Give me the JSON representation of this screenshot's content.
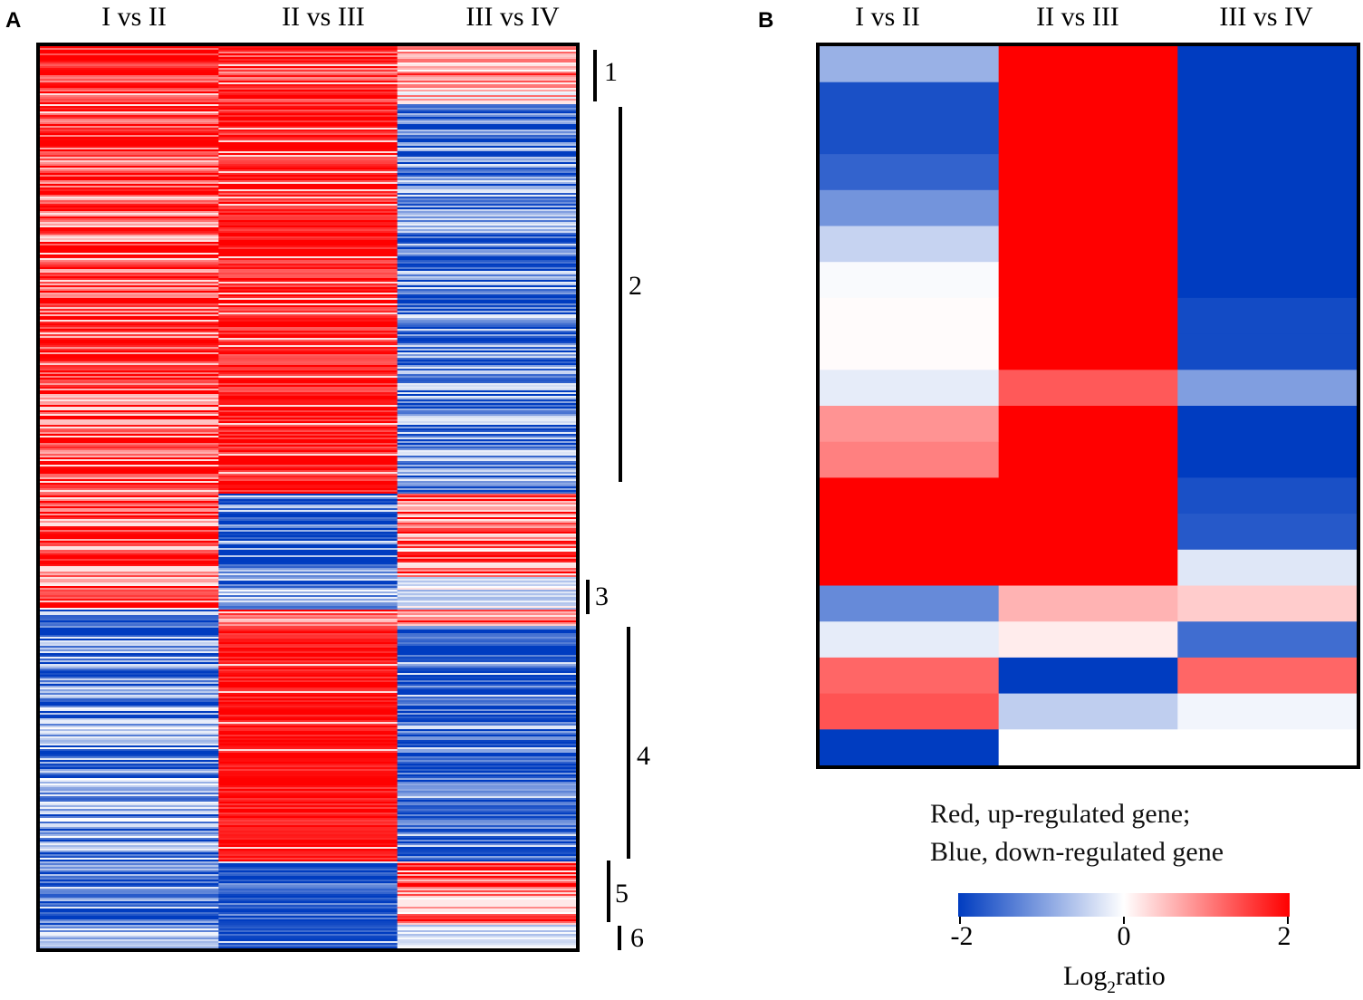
{
  "panel_a": {
    "letter": "A"
  },
  "panel_b": {
    "letter": "B"
  },
  "legend": {
    "line1": "Red, up-regulated gene;",
    "line2": "Blue, down-regulated gene",
    "ticks": [
      "-2",
      "0",
      "2"
    ],
    "axis_label": "Log",
    "axis_label_sub": "2",
    "axis_label_tail": "ratio"
  },
  "colors": {
    "low": "#003cc0",
    "mid": "#ffffff",
    "high": "#ff0000"
  },
  "chart_data": [
    {
      "type": "heatmap",
      "title": "A",
      "columns": [
        "I vs II",
        "II vs III",
        "III vs IV"
      ],
      "value_range": [
        -2,
        2
      ],
      "cluster_labels": [
        "1",
        "2",
        "3",
        "4",
        "5",
        "6"
      ],
      "segments": [
        {
          "cluster": "1",
          "rows": 32,
          "means": [
            1.7,
            1.6,
            0.7
          ],
          "spread": [
            0.6,
            0.6,
            0.8
          ]
        },
        {
          "cluster": "2",
          "rows": 215,
          "means": [
            1.5,
            1.8,
            -1.4
          ],
          "spread": [
            0.8,
            0.4,
            0.9
          ]
        },
        {
          "cluster": "",
          "rows": 46,
          "means": [
            1.5,
            -1.5,
            1.2
          ],
          "spread": [
            0.7,
            0.8,
            0.9
          ]
        },
        {
          "cluster": "3",
          "rows": 18,
          "means": [
            1.2,
            -1.0,
            -0.3
          ],
          "spread": [
            0.8,
            0.8,
            0.4
          ]
        },
        {
          "cluster": "",
          "rows": 9,
          "means": [
            -1.8,
            1.2,
            1.0
          ],
          "spread": [
            0.3,
            0.7,
            0.7
          ]
        },
        {
          "cluster": "4",
          "rows": 130,
          "means": [
            -1.2,
            1.9,
            -1.7
          ],
          "spread": [
            0.9,
            0.3,
            0.6
          ]
        },
        {
          "cluster": "5",
          "rows": 35,
          "means": [
            -1.5,
            -1.7,
            1.2
          ],
          "spread": [
            0.7,
            0.5,
            0.9
          ]
        },
        {
          "cluster": "6",
          "rows": 13,
          "means": [
            -0.8,
            -1.8,
            -0.4
          ],
          "spread": [
            0.5,
            0.3,
            0.3
          ]
        }
      ]
    },
    {
      "type": "heatmap",
      "title": "B",
      "columns": [
        "I vs II",
        "II vs III",
        "III vs IV"
      ],
      "value_range": [
        -2,
        2
      ],
      "rows": [
        [
          -0.8,
          2,
          -2
        ],
        [
          -1.8,
          2,
          -2
        ],
        [
          -1.8,
          2,
          -2
        ],
        [
          -1.6,
          2,
          -2
        ],
        [
          -1.1,
          2,
          -2
        ],
        [
          -0.45,
          2,
          -2
        ],
        [
          -0.05,
          2,
          -2
        ],
        [
          0.03,
          2,
          -1.85
        ],
        [
          0.03,
          2,
          -1.85
        ],
        [
          -0.2,
          1.3,
          -1.0
        ],
        [
          0.85,
          2,
          -2
        ],
        [
          1.0,
          2,
          -2
        ],
        [
          2,
          2,
          -1.8
        ],
        [
          2,
          2,
          -1.7
        ],
        [
          2,
          2,
          -0.25
        ],
        [
          -1.2,
          0.6,
          0.4
        ],
        [
          -0.2,
          0.15,
          -1.5
        ],
        [
          1.2,
          -2,
          1.2
        ],
        [
          1.35,
          -0.5,
          -0.1
        ],
        [
          -2,
          0,
          0
        ]
      ]
    }
  ]
}
